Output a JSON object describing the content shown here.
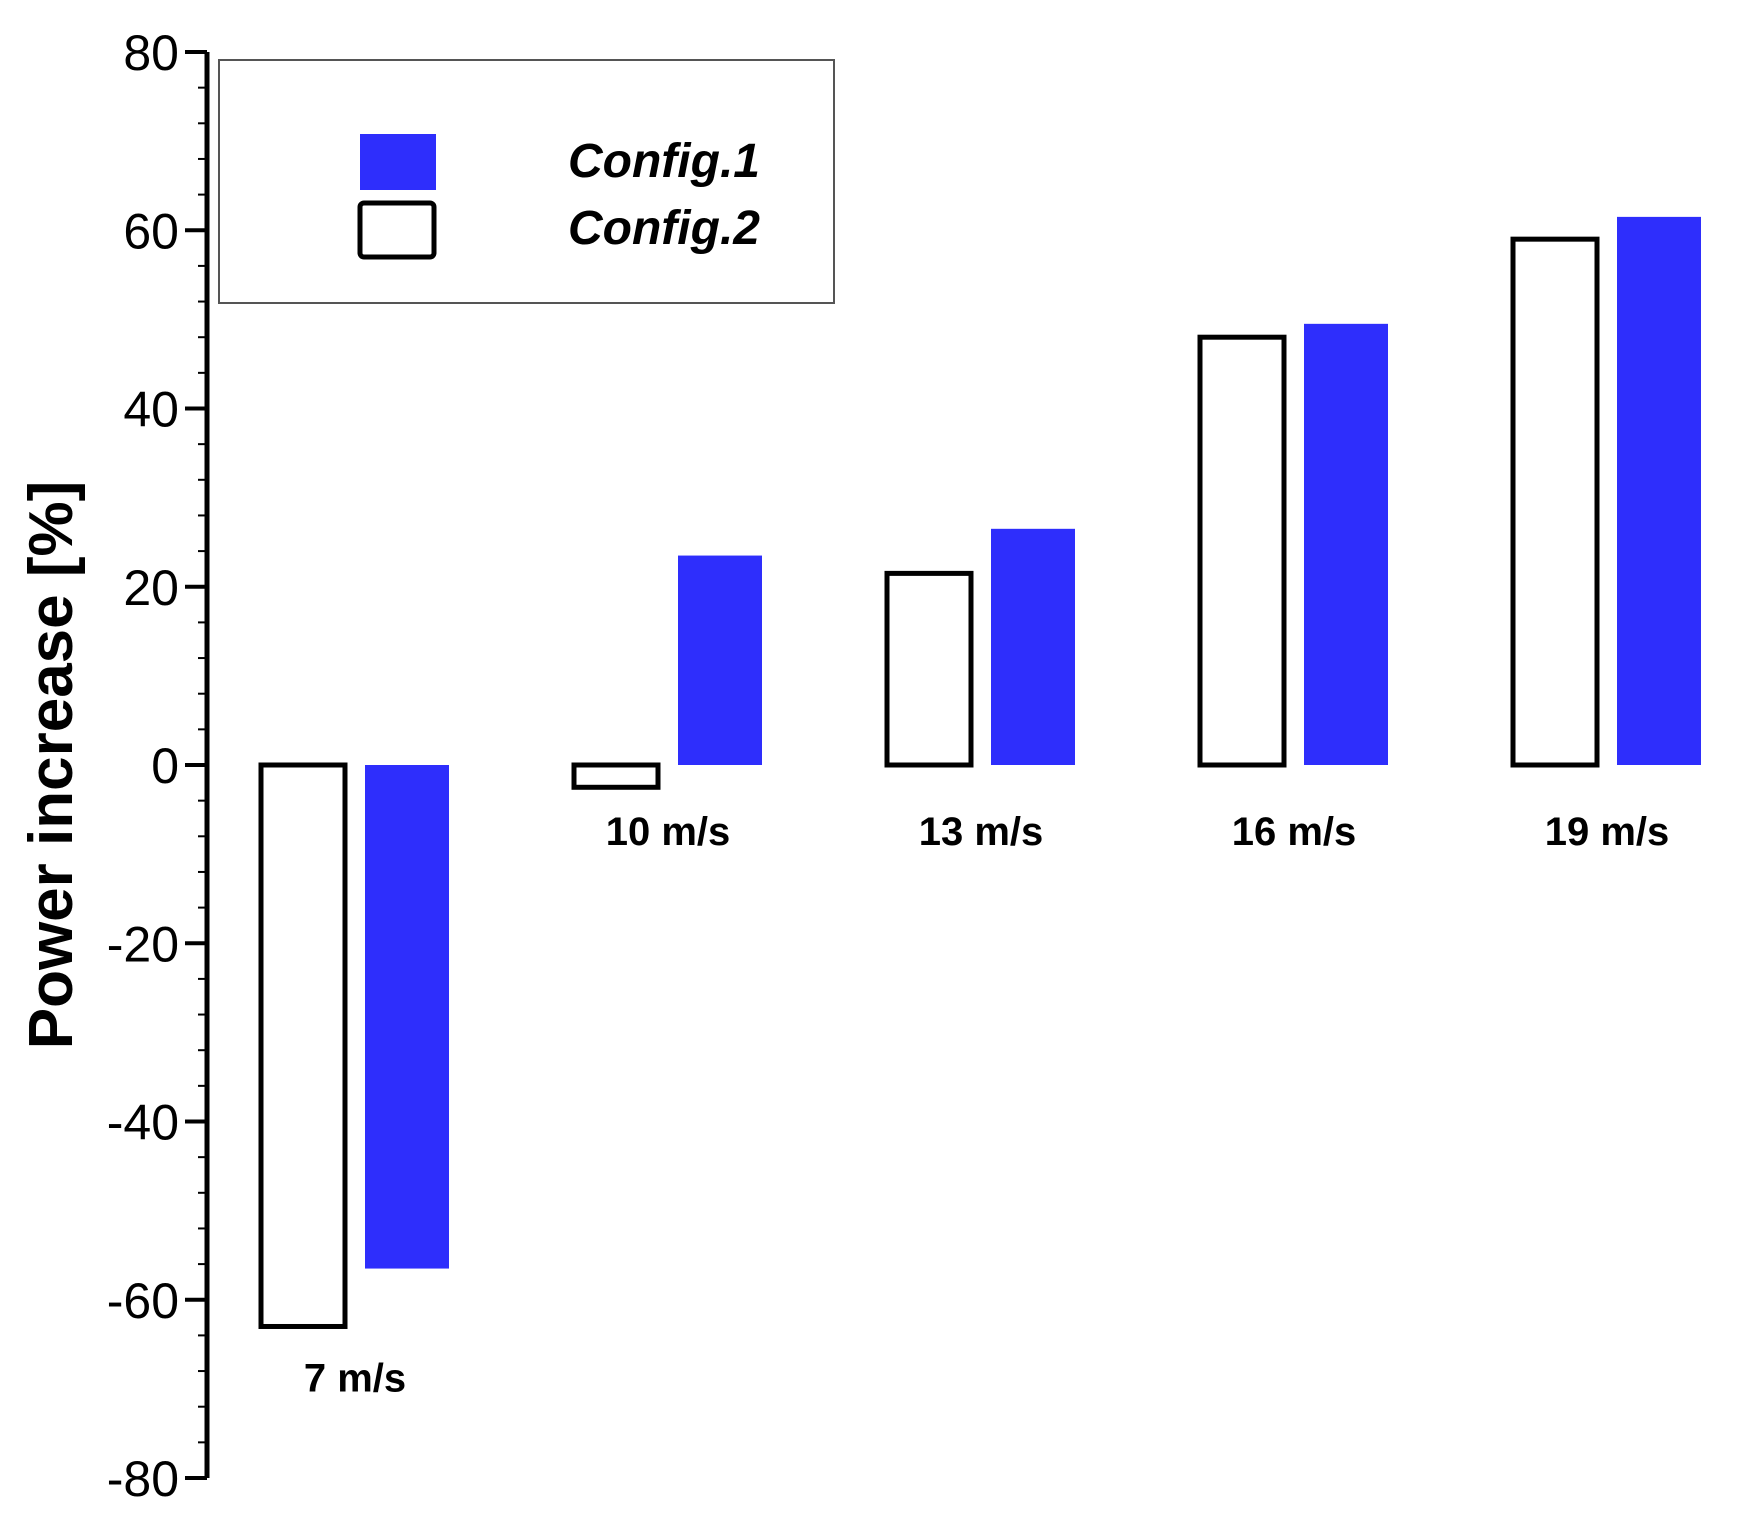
{
  "chart_data": {
    "type": "bar",
    "title": "",
    "xlabel": "",
    "ylabel": "Power increase [%]",
    "ylim": [
      -80,
      80
    ],
    "yticks": [
      -80,
      -60,
      -40,
      -20,
      0,
      20,
      40,
      60,
      80
    ],
    "categories": [
      "7 m/s",
      "10 m/s",
      "13 m/s",
      "16 m/s",
      "19 m/s"
    ],
    "series": [
      {
        "name": "Config.2",
        "fill": "#ffffff",
        "stroke": "#000000",
        "values": [
          -63,
          -2.5,
          21.5,
          48,
          59
        ]
      },
      {
        "name": "Config.1",
        "fill": "#2e2efc",
        "stroke": "none",
        "values": [
          -56.5,
          23.5,
          26.5,
          49.5,
          61.5
        ]
      }
    ],
    "legend": {
      "position": "top-left",
      "entries": [
        "Config.1",
        "Config.2"
      ]
    },
    "grid": false
  }
}
